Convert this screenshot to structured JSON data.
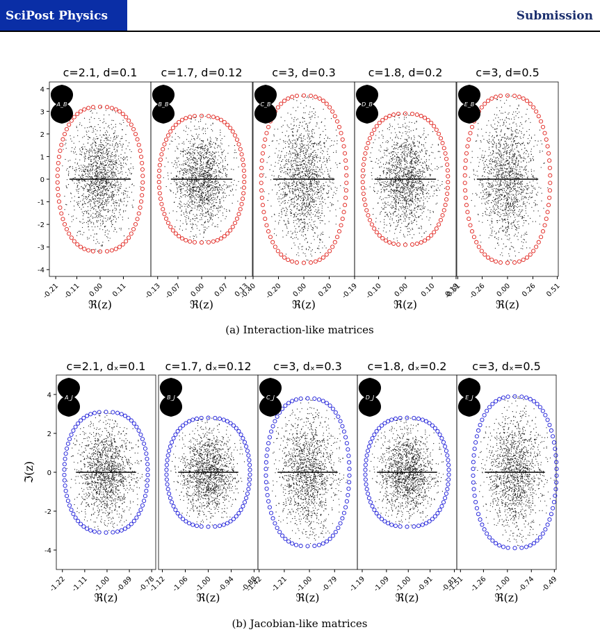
{
  "header": {
    "journal": "SciPost Physics",
    "label": "Submission"
  },
  "colors": {
    "brand": "#0a2ea6",
    "red_ring": "#e0201a",
    "blue_ring": "#1a1ad8"
  },
  "captions": {
    "a": "(a) Interaction-like matrices",
    "b": "(b) Jacobian-like matrices"
  },
  "chart_data": [
    {
      "type": "scatter",
      "group": "a",
      "ring_color": "red",
      "xlabel": "ℜ(z)",
      "ylabel": "",
      "ylim": [
        -4.3,
        4.3
      ],
      "yticks": [
        "-4",
        "-3",
        "-2",
        "-1",
        "0",
        "1",
        "2",
        "3",
        "4"
      ],
      "panels": [
        {
          "title": "c=2.1, d=0.1",
          "shape_label": "A_B",
          "xticks": [
            "-0.21",
            "-0.11",
            "0.00",
            "0.11"
          ],
          "xlim": [
            -0.24,
            0.24
          ],
          "ymax": 3.2
        },
        {
          "title": "c=1.7, d=0.12",
          "shape_label": "B_B",
          "xticks": [
            "-0.13",
            "-0.07",
            "0.00",
            "0.07",
            "0.13"
          ],
          "xlim": [
            -0.15,
            0.15
          ],
          "ymax": 2.8
        },
        {
          "title": "c=3, d=0.3",
          "shape_label": "C_B",
          "xticks": [
            "-0.40",
            "-0.20",
            "0.00",
            "0.20"
          ],
          "xlim": [
            -0.4,
            0.4
          ],
          "ymax": 3.7
        },
        {
          "title": "c=1.8, d=0.2",
          "shape_label": "D_B",
          "xticks": [
            "-0.19",
            "-0.10",
            "0.00",
            "0.10",
            "0.19"
          ],
          "xlim": [
            -0.19,
            0.19
          ],
          "ymax": 2.9
        },
        {
          "title": "c=3, d=0.5",
          "shape_label": "E_B",
          "xticks": [
            "-0.51",
            "-0.26",
            "0.00",
            "0.26",
            "0.51"
          ],
          "xlim": [
            -0.52,
            0.52
          ],
          "ymax": 3.7
        }
      ]
    },
    {
      "type": "scatter",
      "group": "b",
      "ring_color": "blue",
      "xlabel": "ℜ(z)",
      "ylabel": "ℑ(z)",
      "ylim": [
        -5.0,
        5.0
      ],
      "yticks": [
        "-4",
        "-2",
        "0",
        "2",
        "4"
      ],
      "panels": [
        {
          "title": "c=2.1, dₓ=0.1",
          "shape_label": "A_J",
          "xticks": [
            "-1.22",
            "-1.11",
            "-1.00",
            "-0.89",
            "-0.78"
          ],
          "xlim": [
            -1.25,
            -0.76
          ],
          "ymax": 3.1
        },
        {
          "title": "c=1.7, dₓ=0.12",
          "shape_label": "B_J",
          "xticks": [
            "-1.12",
            "-1.06",
            "-1.00",
            "-0.94",
            "-0.88"
          ],
          "xlim": [
            -1.13,
            -0.87
          ],
          "ymax": 2.8
        },
        {
          "title": "c=3, dₓ=0.3",
          "shape_label": "C_J",
          "xticks": [
            "-1.42",
            "-1.21",
            "-1.00",
            "-0.79"
          ],
          "xlim": [
            -1.43,
            -0.6
          ],
          "ymax": 3.8
        },
        {
          "title": "c=1.8, dₓ=0.2",
          "shape_label": "D_J",
          "xticks": [
            "-1.19",
            "-1.09",
            "-1.00",
            "-0.91",
            "-0.81"
          ],
          "xlim": [
            -1.21,
            -0.8
          ],
          "ymax": 2.8
        },
        {
          "title": "c=3, dₓ=0.5",
          "shape_label": "E_J",
          "xticks": [
            "-1.51",
            "-1.26",
            "-1.00",
            "-0.74",
            "-0.49"
          ],
          "xlim": [
            -1.55,
            -0.47
          ],
          "ymax": 3.9
        }
      ]
    }
  ]
}
